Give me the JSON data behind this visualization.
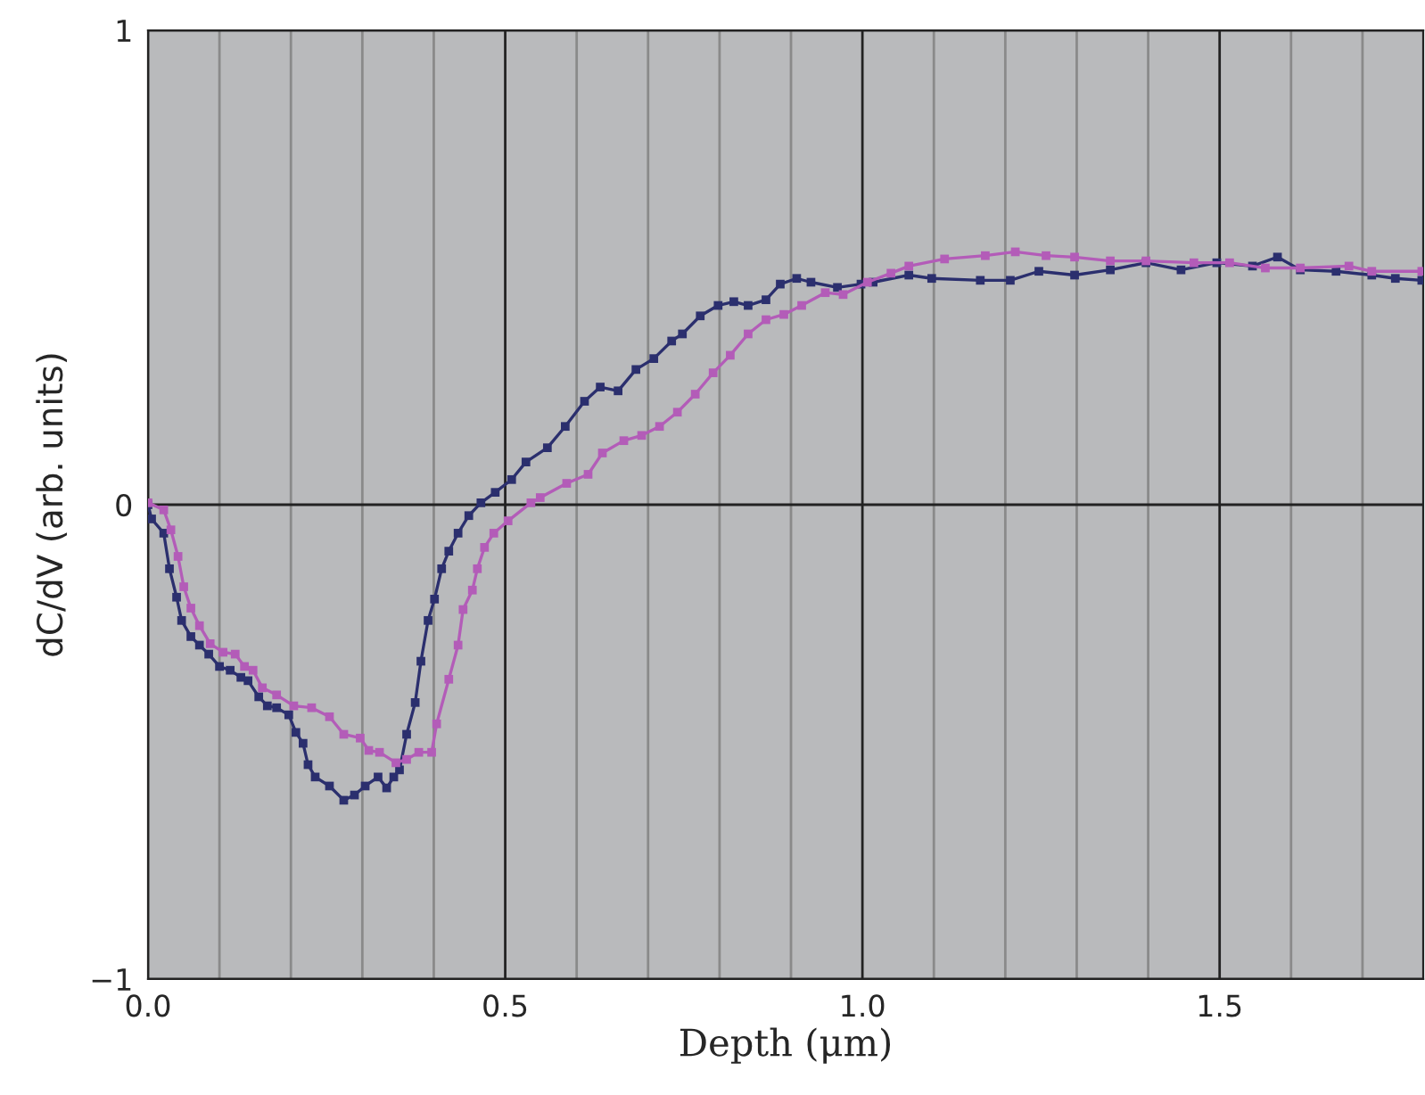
{
  "chart_data": {
    "type": "line",
    "xlabel": "Depth (μm)",
    "ylabel": "dC/dV (arb. units)",
    "xlim": [
      0,
      1.785
    ],
    "ylim": [
      -1,
      1
    ],
    "xticks": [
      {
        "value": 0,
        "label": "0.0"
      },
      {
        "value": 0.1,
        "label": null
      },
      {
        "value": 0.2,
        "label": null
      },
      {
        "value": 0.3,
        "label": null
      },
      {
        "value": 0.4,
        "label": null
      },
      {
        "value": 0.5,
        "label": "0.5"
      },
      {
        "value": 0.6,
        "label": null
      },
      {
        "value": 0.7,
        "label": null
      },
      {
        "value": 0.8,
        "label": null
      },
      {
        "value": 0.9,
        "label": null
      },
      {
        "value": 1.0,
        "label": "1.0"
      },
      {
        "value": 1.1,
        "label": null
      },
      {
        "value": 1.2,
        "label": null
      },
      {
        "value": 1.3,
        "label": null
      },
      {
        "value": 1.4,
        "label": null
      },
      {
        "value": 1.5,
        "label": "1.5"
      },
      {
        "value": 1.6,
        "label": null
      },
      {
        "value": 1.7,
        "label": null
      }
    ],
    "yticks": [
      {
        "value": -1,
        "label": "−1"
      },
      0,
      1
    ],
    "grid": true,
    "marker": "square",
    "line_style": "solid",
    "series": [
      {
        "color": "#2b2f6e",
        "x": [
          0,
          0.005,
          0.022,
          0.03,
          0.04,
          0.047,
          0.06,
          0.072,
          0.085,
          0.1,
          0.115,
          0.13,
          0.14,
          0.155,
          0.167,
          0.18,
          0.197,
          0.207,
          0.217,
          0.224,
          0.234,
          0.254,
          0.274,
          0.289,
          0.304,
          0.322,
          0.334,
          0.344,
          0.352,
          0.362,
          0.374,
          0.382,
          0.392,
          0.401,
          0.411,
          0.421,
          0.434,
          0.449,
          0.466,
          0.486,
          0.509,
          0.529,
          0.559,
          0.584,
          0.611,
          0.633,
          0.658,
          0.683,
          0.708,
          0.733,
          0.748,
          0.773,
          0.798,
          0.82,
          0.84,
          0.865,
          0.885,
          0.908,
          0.928,
          0.965,
          0.998,
          1.015,
          1.065,
          1.097,
          1.165,
          1.207,
          1.247,
          1.297,
          1.347,
          1.397,
          1.446,
          1.496,
          1.546,
          1.581,
          1.613,
          1.663,
          1.713,
          1.746,
          1.783
        ],
        "values": [
          0,
          -0.03,
          -0.06,
          -0.135,
          -0.195,
          -0.244,
          -0.278,
          -0.296,
          -0.315,
          -0.341,
          -0.349,
          -0.364,
          -0.371,
          -0.405,
          -0.424,
          -0.428,
          -0.443,
          -0.48,
          -0.503,
          -0.548,
          -0.574,
          -0.593,
          -0.623,
          -0.612,
          -0.593,
          -0.574,
          -0.597,
          -0.574,
          -0.559,
          -0.484,
          -0.417,
          -0.33,
          -0.244,
          -0.199,
          -0.135,
          -0.098,
          -0.06,
          -0.023,
          0.004,
          0.026,
          0.053,
          0.09,
          0.12,
          0.165,
          0.218,
          0.248,
          0.24,
          0.285,
          0.308,
          0.345,
          0.36,
          0.398,
          0.42,
          0.428,
          0.42,
          0.432,
          0.465,
          0.477,
          0.469,
          0.458,
          0.465,
          0.469,
          0.484,
          0.477,
          0.473,
          0.473,
          0.492,
          0.484,
          0.495,
          0.51,
          0.495,
          0.51,
          0.503,
          0.522,
          0.495,
          0.492,
          0.484,
          0.477,
          0.473
        ]
      },
      {
        "color": "#b35cb8",
        "x": [
          0,
          0.022,
          0.032,
          0.042,
          0.05,
          0.06,
          0.072,
          0.087,
          0.105,
          0.122,
          0.135,
          0.147,
          0.16,
          0.18,
          0.204,
          0.229,
          0.254,
          0.274,
          0.297,
          0.309,
          0.324,
          0.347,
          0.362,
          0.379,
          0.397,
          0.404,
          0.421,
          0.434,
          0.441,
          0.454,
          0.461,
          0.471,
          0.484,
          0.504,
          0.536,
          0.549,
          0.586,
          0.616,
          0.636,
          0.666,
          0.691,
          0.716,
          0.741,
          0.766,
          0.791,
          0.815,
          0.84,
          0.865,
          0.89,
          0.915,
          0.948,
          0.973,
          1.007,
          1.04,
          1.065,
          1.115,
          1.172,
          1.214,
          1.257,
          1.297,
          1.347,
          1.397,
          1.464,
          1.514,
          1.564,
          1.613,
          1.681,
          1.713,
          1.783
        ],
        "values": [
          0.004,
          -0.011,
          -0.053,
          -0.109,
          -0.173,
          -0.218,
          -0.255,
          -0.293,
          -0.311,
          -0.315,
          -0.341,
          -0.349,
          -0.386,
          -0.401,
          -0.424,
          -0.428,
          -0.447,
          -0.484,
          -0.492,
          -0.518,
          -0.522,
          -0.544,
          -0.537,
          -0.522,
          -0.522,
          -0.462,
          -0.368,
          -0.296,
          -0.221,
          -0.18,
          -0.135,
          -0.09,
          -0.06,
          -0.034,
          0.004,
          0.015,
          0.045,
          0.064,
          0.109,
          0.135,
          0.146,
          0.165,
          0.195,
          0.233,
          0.278,
          0.315,
          0.36,
          0.39,
          0.401,
          0.42,
          0.447,
          0.443,
          0.469,
          0.488,
          0.503,
          0.518,
          0.525,
          0.533,
          0.525,
          0.522,
          0.514,
          0.514,
          0.51,
          0.51,
          0.499,
          0.499,
          0.503,
          0.492,
          0.492
        ]
      }
    ]
  }
}
